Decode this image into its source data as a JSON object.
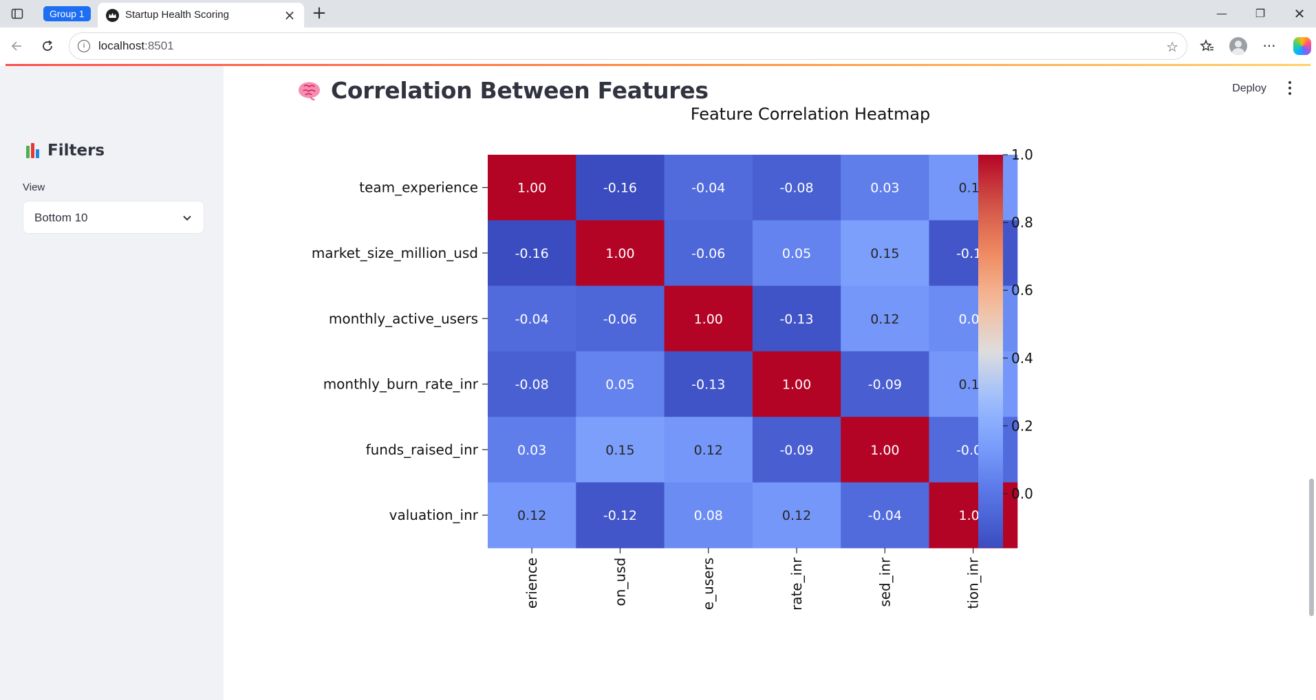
{
  "browser": {
    "group_label": "Group 1",
    "tab_title": "Startup Health Scoring",
    "url_host": "localhost",
    "url_port": ":8501"
  },
  "sidebar": {
    "title": "Filters",
    "view_label": "View",
    "view_value": "Bottom 10"
  },
  "header": {
    "deploy_label": "Deploy"
  },
  "page": {
    "title": "Correlation Between Features"
  },
  "chart_data": {
    "type": "heatmap",
    "title": "Feature Correlation Heatmap",
    "rows": [
      "team_experience",
      "market_size_million_usd",
      "monthly_active_users",
      "monthly_burn_rate_inr",
      "funds_raised_inr",
      "valuation_inr"
    ],
    "x_tick_labels_visible": [
      "erience",
      "on_usd",
      "e_users",
      "rate_inr",
      "sed_inr",
      "tion_inr"
    ],
    "values": [
      [
        1.0,
        -0.16,
        -0.04,
        -0.08,
        0.03,
        0.12
      ],
      [
        -0.16,
        1.0,
        -0.06,
        0.05,
        0.15,
        -0.12
      ],
      [
        -0.04,
        -0.06,
        1.0,
        -0.13,
        0.12,
        0.08
      ],
      [
        -0.08,
        0.05,
        -0.13,
        1.0,
        -0.09,
        0.12
      ],
      [
        0.03,
        0.15,
        0.12,
        -0.09,
        1.0,
        -0.04
      ],
      [
        0.12,
        -0.12,
        0.08,
        0.12,
        -0.04,
        1.0
      ]
    ],
    "annotation_format": "0.00",
    "colormap": "coolwarm",
    "colorbar": {
      "range": [
        -0.16,
        1.0
      ],
      "ticks": [
        0.0,
        0.2,
        0.4,
        0.6,
        0.8,
        1.0
      ],
      "tick_labels": [
        "0.0",
        "0.2",
        "0.4",
        "0.6",
        "0.8",
        "1.0"
      ]
    }
  }
}
